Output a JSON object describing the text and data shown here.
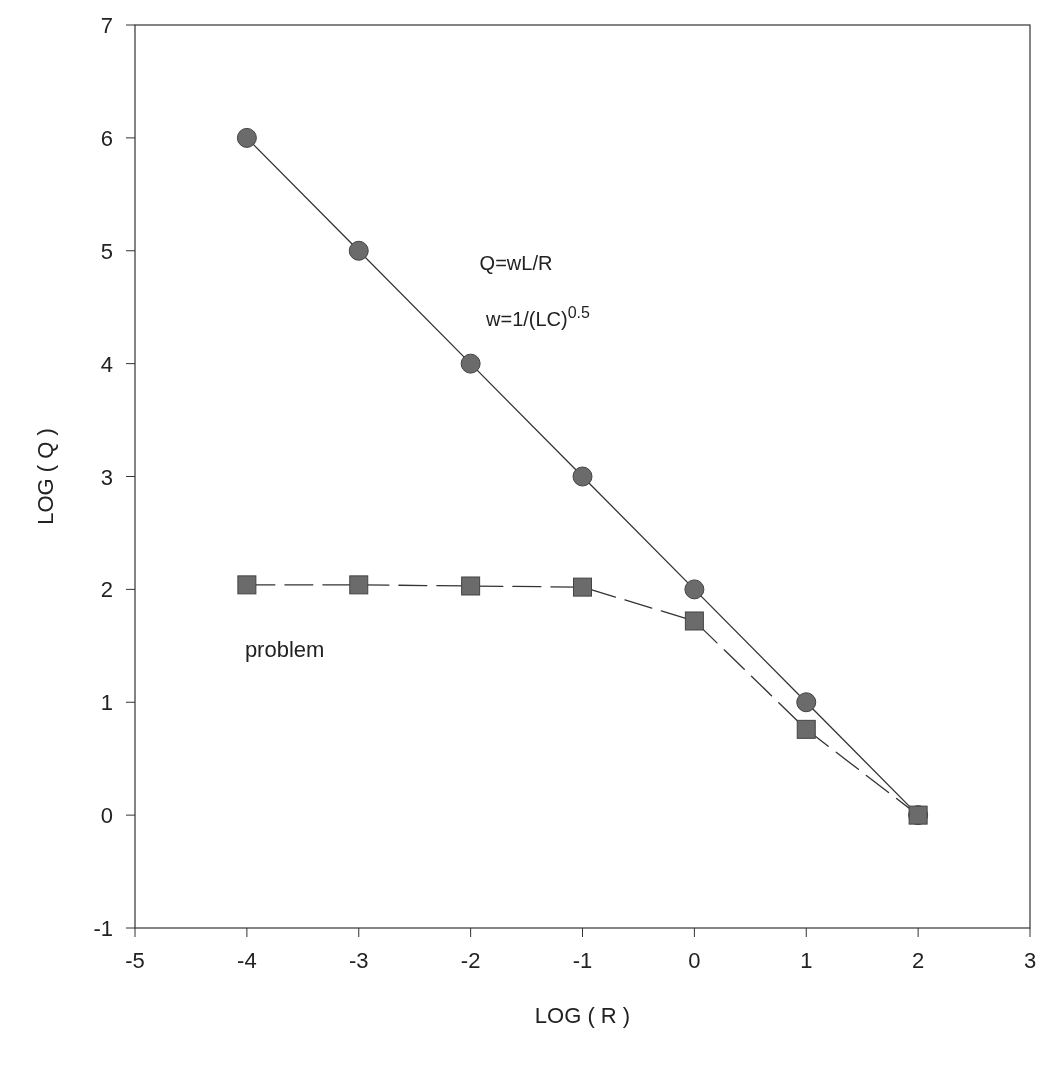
{
  "chart_data": {
    "type": "line",
    "xlabel": "LOG ( R )",
    "ylabel": "LOG ( Q )",
    "x": [
      -4,
      -3,
      -2,
      -1,
      0,
      1,
      2
    ],
    "series": [
      {
        "color": "#6b6b6b",
        "marker": "circle",
        "line_style": "solid",
        "values": [
          6,
          5,
          4,
          3,
          2,
          1,
          0
        ]
      },
      {
        "name": "problem",
        "color": "#6b6b6b",
        "marker": "square",
        "line_style": "dashed",
        "values": [
          2.04,
          2.04,
          2.03,
          2.02,
          1.72,
          0.76,
          0
        ]
      }
    ],
    "xlim": [
      -5,
      3
    ],
    "xticks": [
      -5,
      -4,
      -3,
      -2,
      -1,
      0,
      1,
      2,
      3
    ],
    "ylim": [
      -1,
      7
    ],
    "yticks": [
      -1,
      0,
      1,
      2,
      3,
      4,
      5,
      6,
      7
    ],
    "annotations": [
      "Q=wL/R",
      "w=1/(LC)$^{0.5}$"
    ],
    "grid": false
  }
}
